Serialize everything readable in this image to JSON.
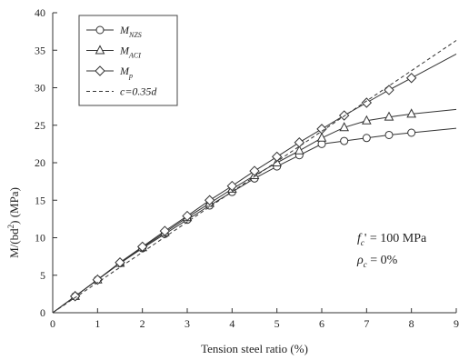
{
  "chart_data": {
    "type": "line",
    "xlabel": "Tension steel ratio (%)",
    "ylabel": {
      "prefix": "M/(bd",
      "sup": "2",
      "suffix": ") (MPa)"
    },
    "xlim": [
      0,
      9
    ],
    "ylim": [
      0,
      40
    ],
    "xticks": [
      0,
      1,
      2,
      3,
      4,
      5,
      6,
      7,
      8,
      9
    ],
    "yticks": [
      0,
      5,
      10,
      15,
      20,
      25,
      30,
      35,
      40
    ],
    "grid": false,
    "legend_position": "top-left",
    "series": [
      {
        "name": "M",
        "name_sub": "NZS",
        "marker": "circle",
        "dash": "",
        "x": [
          0,
          0.5,
          1,
          1.5,
          2,
          2.5,
          3,
          3.5,
          4,
          4.5,
          5,
          5.5,
          6,
          6.5,
          7,
          7.5,
          8,
          9
        ],
        "y": [
          0,
          2.2,
          4.4,
          6.6,
          8.6,
          10.5,
          12.4,
          14.3,
          16.1,
          17.9,
          19.5,
          21.0,
          22.5,
          22.9,
          23.3,
          23.7,
          24.0,
          24.6
        ],
        "marker_x": [
          0.5,
          1,
          1.5,
          2,
          2.5,
          3,
          3.5,
          4,
          4.5,
          5,
          5.5,
          6,
          6.5,
          7,
          7.5,
          8
        ]
      },
      {
        "name": "M",
        "name_sub": "ACI",
        "marker": "triangle",
        "dash": "",
        "x": [
          0,
          0.5,
          1,
          1.5,
          2,
          2.5,
          3,
          3.5,
          4,
          4.5,
          5,
          5.5,
          6,
          6.5,
          7,
          7.5,
          8,
          9
        ],
        "y": [
          0,
          2.2,
          4.4,
          6.6,
          8.7,
          10.7,
          12.7,
          14.6,
          16.5,
          18.3,
          20.0,
          21.6,
          23.3,
          24.7,
          25.6,
          26.1,
          26.5,
          27.1
        ],
        "marker_x": [
          0.5,
          1,
          1.5,
          2,
          2.5,
          3,
          3.5,
          4,
          4.5,
          5,
          5.5,
          6,
          6.5,
          7,
          7.5,
          8
        ]
      },
      {
        "name": "M",
        "name_sub": "p",
        "marker": "diamond",
        "dash": "",
        "x": [
          0,
          0.5,
          1,
          1.5,
          2,
          2.5,
          3,
          3.5,
          4,
          4.5,
          5,
          5.5,
          6,
          6.5,
          7,
          7.5,
          8,
          9
        ],
        "y": [
          0,
          2.2,
          4.4,
          6.7,
          8.8,
          10.9,
          12.9,
          15.0,
          16.9,
          18.9,
          20.8,
          22.7,
          24.5,
          26.3,
          28.0,
          29.7,
          31.3,
          34.5
        ],
        "marker_x": [
          0.5,
          1,
          1.5,
          2,
          2.5,
          3,
          3.5,
          4,
          4.5,
          5,
          5.5,
          6,
          6.5,
          7,
          7.5,
          8
        ]
      },
      {
        "name": "c=0.35d",
        "marker": "none",
        "dash": "4,3",
        "x": [
          0,
          9
        ],
        "y": [
          0,
          36.3
        ],
        "marker_x": []
      }
    ],
    "annotations": [
      {
        "prefix": "f",
        "sub": "c",
        "text": "' = 100 MPa"
      },
      {
        "prefix": "ρ",
        "sub": "c",
        "text": " = 0%"
      }
    ]
  }
}
